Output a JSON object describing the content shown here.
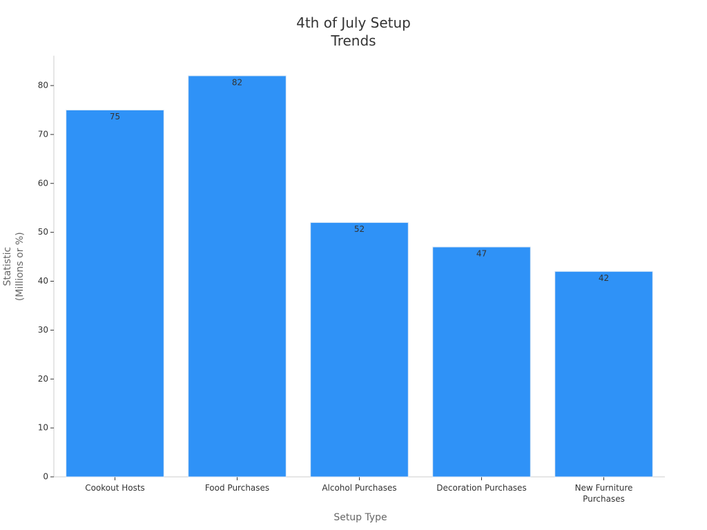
{
  "chart_data": {
    "type": "bar",
    "title": "4th of July Setup\nTrends",
    "x_label": "Setup Type",
    "y_label": "Statistic\n(Millions or %)",
    "categories": [
      "Cookout Hosts",
      "Food Purchases",
      "Alcohol Purchases",
      "Decoration Purchases",
      "New Furniture\nPurchases"
    ],
    "values": [
      75,
      82,
      52,
      47,
      42
    ],
    "color": "#2f92f7",
    "ylim": [
      0,
      86.1
    ],
    "yticks": [
      0,
      10,
      20,
      30,
      40,
      50,
      60,
      70,
      80
    ],
    "grid": false
  }
}
